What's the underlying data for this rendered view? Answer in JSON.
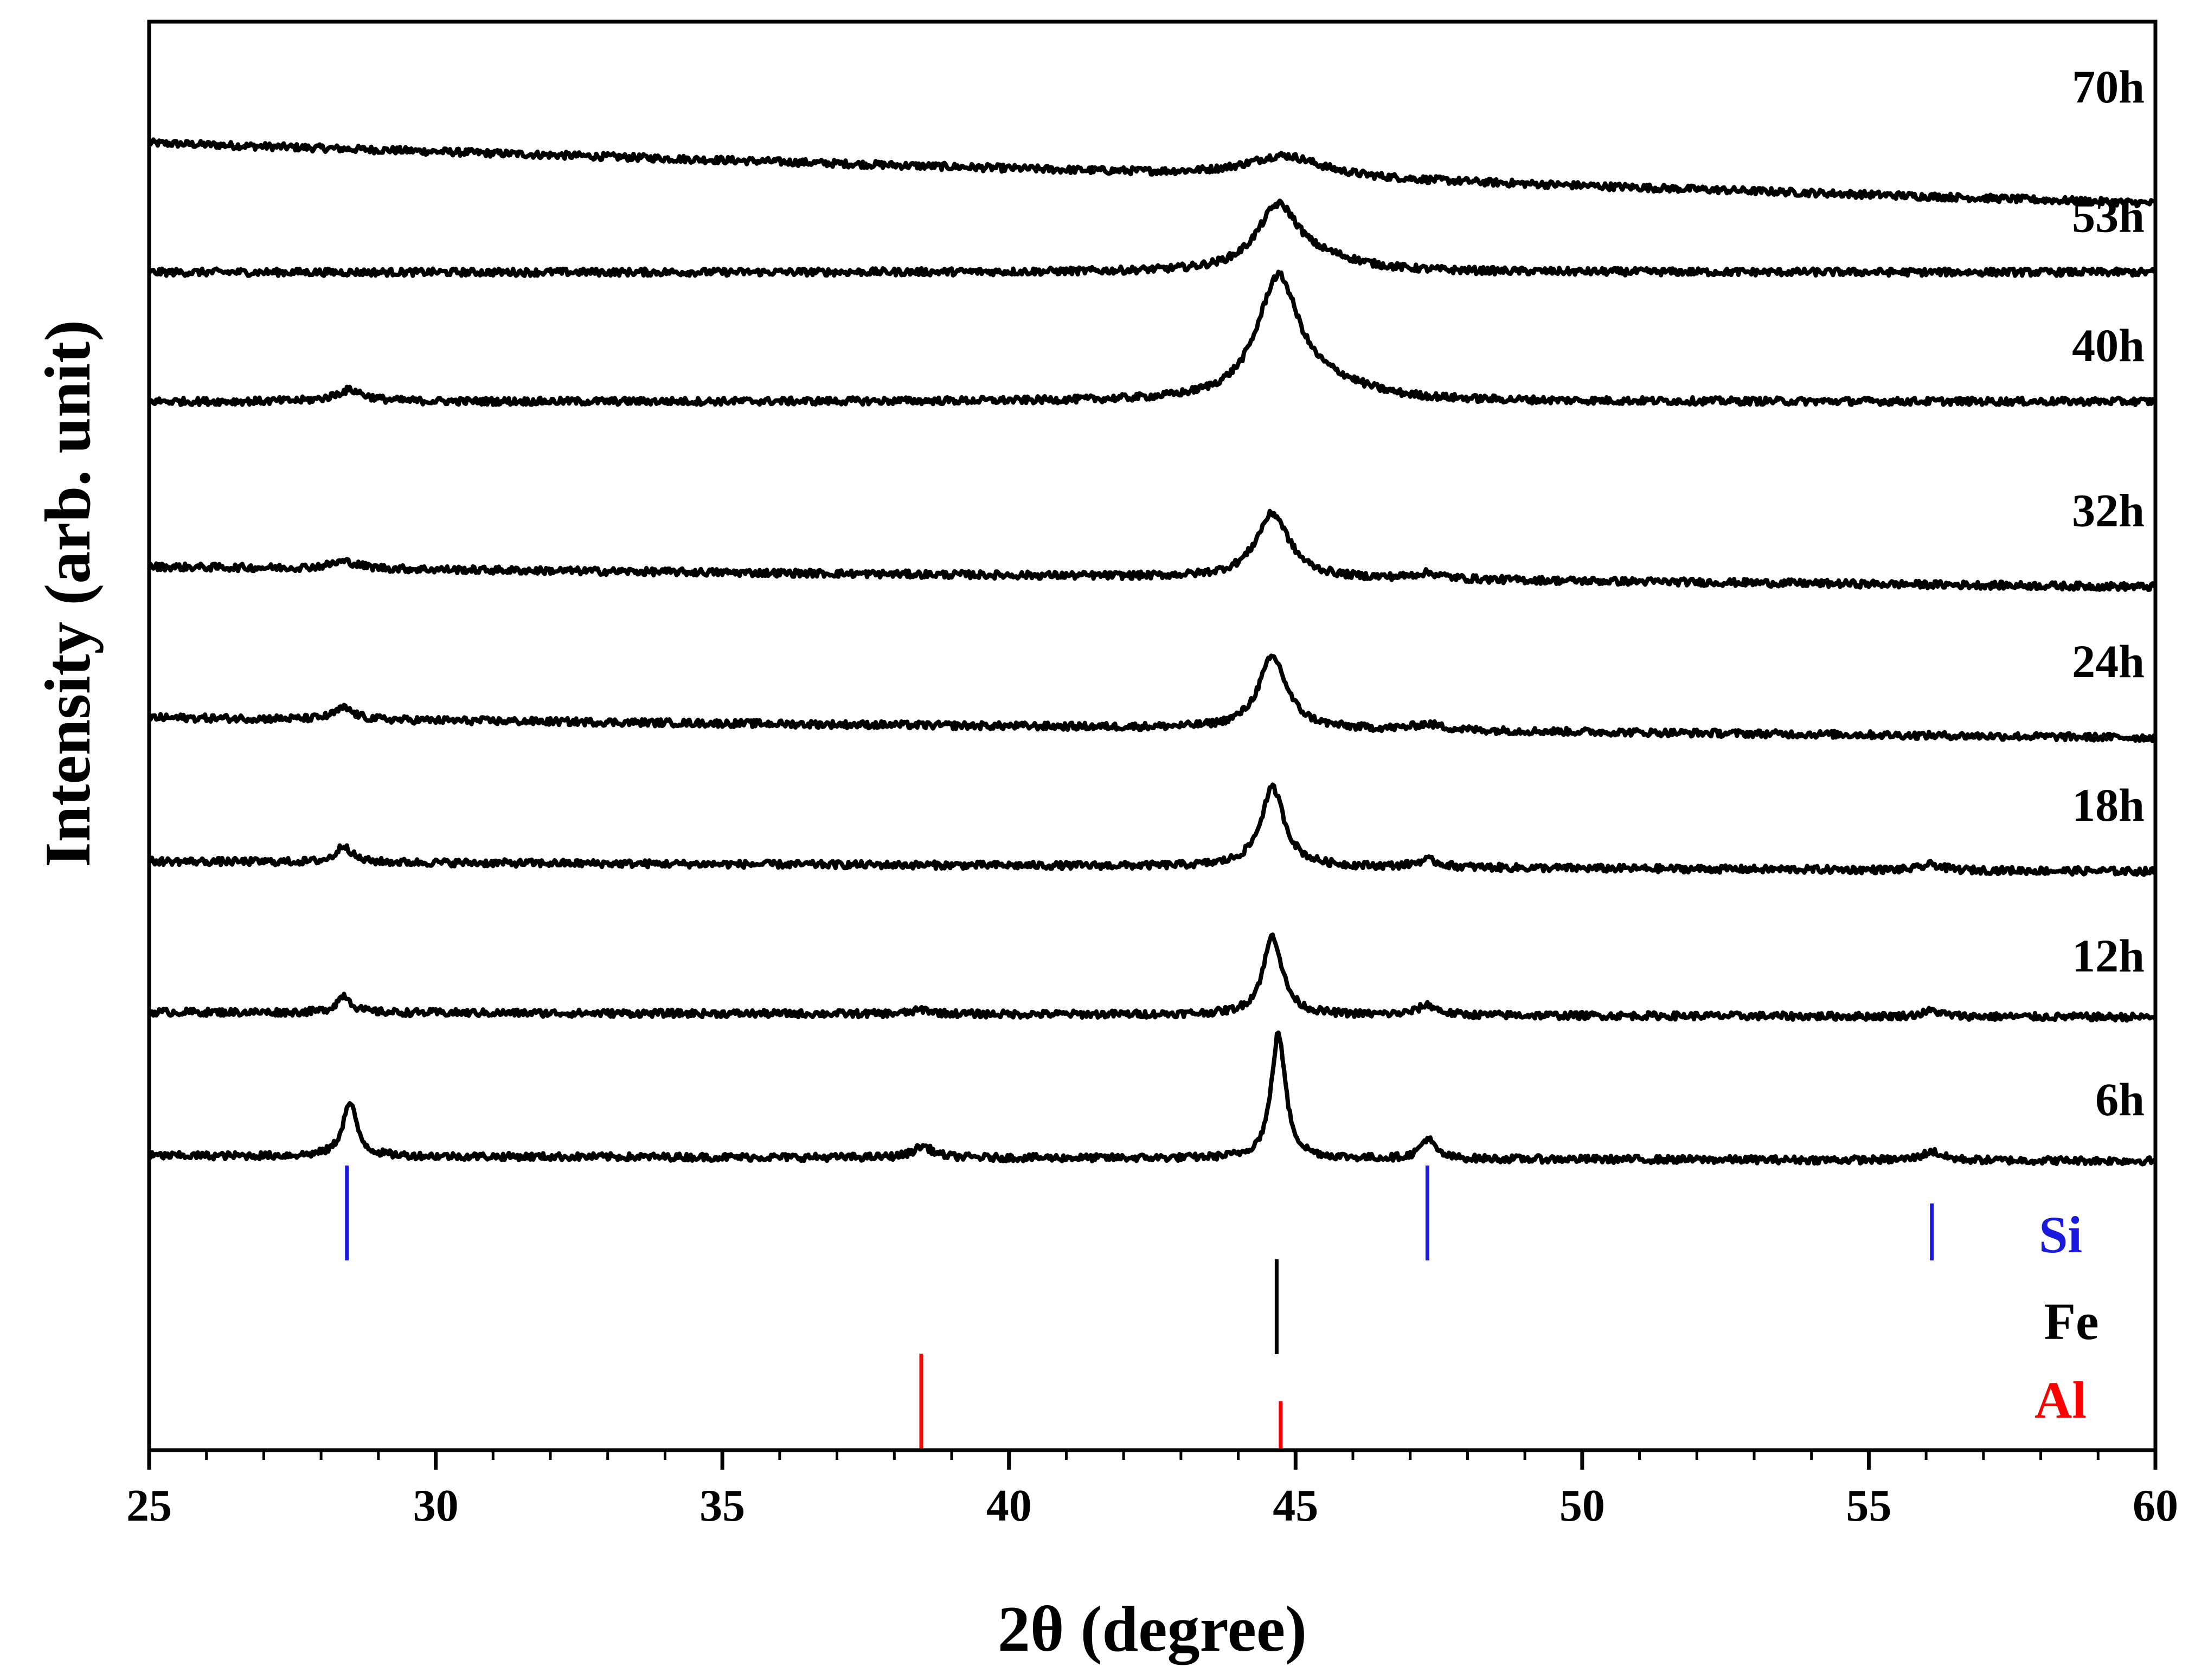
{
  "chart_data": {
    "type": "line",
    "title": "",
    "xlabel": "2θ (degree)",
    "ylabel": "Intensity (arb. unit)",
    "xlim": [
      25,
      60
    ],
    "xticks": [
      25,
      30,
      35,
      40,
      45,
      50,
      55,
      60
    ],
    "yticks": "none",
    "grid": false,
    "legend": "none",
    "offset_series": true,
    "line_color": "#000000",
    "series": [
      {
        "name": "70h",
        "baseline": 8.3,
        "slope": -0.012,
        "peaks": [
          [
            44.8,
            0.15,
            0.8
          ]
        ]
      },
      {
        "name": "53h",
        "baseline": 7.4,
        "slope": 0,
        "peaks": [
          [
            44.7,
            0.45,
            0.45
          ],
          [
            45.6,
            0.06,
            0.8
          ]
        ]
      },
      {
        "name": "40h",
        "baseline": 6.5,
        "slope": 0,
        "peaks": [
          [
            28.5,
            0.08,
            0.3
          ],
          [
            44.7,
            0.85,
            0.45
          ],
          [
            45.7,
            0.08,
            0.8
          ]
        ]
      },
      {
        "name": "32h",
        "baseline": 5.35,
        "slope": -0.004,
        "peaks": [
          [
            28.4,
            0.05,
            0.3
          ],
          [
            44.6,
            0.45,
            0.35
          ],
          [
            47.3,
            0.04,
            0.3
          ]
        ]
      },
      {
        "name": "24h",
        "baseline": 4.3,
        "slope": -0.004,
        "peaks": [
          [
            28.4,
            0.08,
            0.2
          ],
          [
            44.6,
            0.5,
            0.3
          ],
          [
            47.3,
            0.04,
            0.3
          ]
        ]
      },
      {
        "name": "18h",
        "baseline": 3.3,
        "slope": -0.002,
        "peaks": [
          [
            28.4,
            0.12,
            0.15
          ],
          [
            44.6,
            0.55,
            0.25
          ],
          [
            47.3,
            0.05,
            0.25
          ],
          [
            56.1,
            0.04,
            0.2
          ]
        ]
      },
      {
        "name": "12h",
        "baseline": 2.25,
        "slope": -0.001,
        "peaks": [
          [
            28.4,
            0.12,
            0.15
          ],
          [
            38.5,
            0.03,
            0.2
          ],
          [
            44.6,
            0.55,
            0.2
          ],
          [
            47.3,
            0.07,
            0.2
          ],
          [
            56.1,
            0.04,
            0.2
          ]
        ]
      },
      {
        "name": "6h",
        "baseline": 1.25,
        "slope": -0.001,
        "peaks": [
          [
            28.5,
            0.37,
            0.15
          ],
          [
            38.5,
            0.08,
            0.2
          ],
          [
            44.7,
            0.87,
            0.15
          ],
          [
            47.3,
            0.14,
            0.15
          ],
          [
            56.1,
            0.06,
            0.2
          ]
        ]
      }
    ],
    "reference_patterns": [
      {
        "name": "Si",
        "color": "#1a1adf",
        "lines": [
          {
            "x": 28.45,
            "rel": 1.0
          },
          {
            "x": 47.3,
            "rel": 1.0
          },
          {
            "x": 56.1,
            "rel": 0.6
          }
        ]
      },
      {
        "name": "Fe",
        "color": "#000000",
        "lines": [
          {
            "x": 44.67,
            "rel": 1.0
          }
        ]
      },
      {
        "name": "Al",
        "color": "#ff0000",
        "lines": [
          {
            "x": 38.47,
            "rel": 1.0
          },
          {
            "x": 44.74,
            "rel": 0.5
          }
        ]
      }
    ]
  }
}
